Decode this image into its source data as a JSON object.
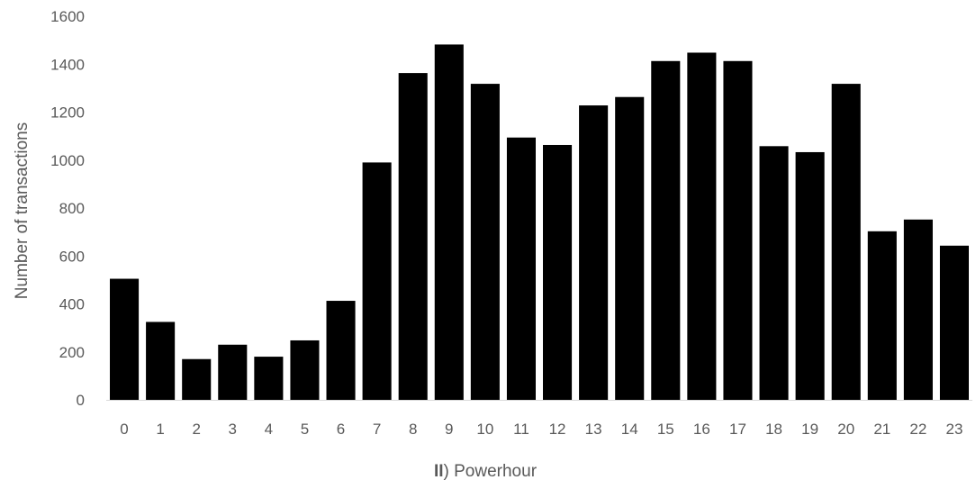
{
  "chart_data": {
    "type": "bar",
    "categories": [
      "0",
      "1",
      "2",
      "3",
      "4",
      "5",
      "6",
      "7",
      "8",
      "9",
      "10",
      "11",
      "12",
      "13",
      "14",
      "15",
      "16",
      "17",
      "18",
      "19",
      "20",
      "21",
      "22",
      "23"
    ],
    "values": [
      505,
      325,
      170,
      230,
      180,
      248,
      413,
      990,
      1363,
      1482,
      1318,
      1094,
      1063,
      1228,
      1263,
      1413,
      1448,
      1413,
      1058,
      1033,
      1318,
      703,
      752,
      643
    ],
    "title": "",
    "xlabel_prefix": "II",
    "xlabel_rest": ") Powerhour",
    "ylabel": "Number of transactions",
    "ylim": [
      0,
      1600
    ],
    "yticks": [
      "0",
      "200",
      "400",
      "600",
      "800",
      "1000",
      "1200",
      "1400",
      "1600"
    ],
    "grid": false,
    "bar_color": "#000000",
    "axis_color": "#D9D9D9",
    "text_color": "#595959"
  }
}
